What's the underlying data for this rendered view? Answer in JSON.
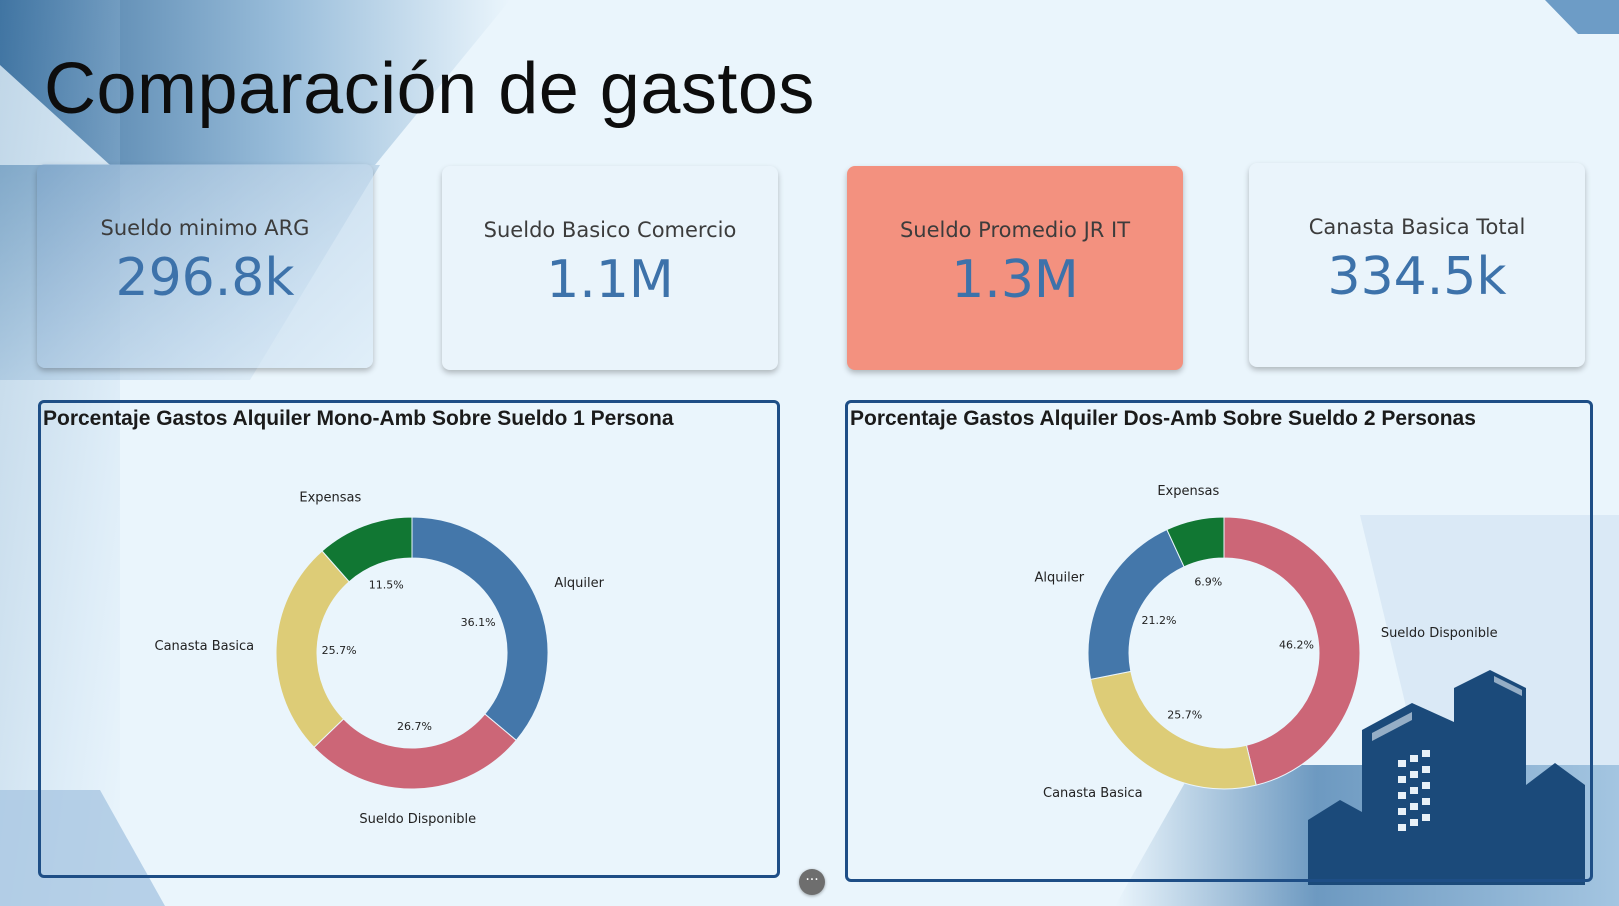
{
  "title": "Comparación de gastos",
  "kpis": [
    {
      "label": "Sueldo minimo ARG",
      "value": "296.8k"
    },
    {
      "label": "Sueldo Basico Comercio",
      "value": "1.1M"
    },
    {
      "label": "Sueldo Promedio JR IT",
      "value": "1.3M"
    },
    {
      "label": "Canasta Basica Total",
      "value": "334.5k"
    }
  ],
  "more_button": "···",
  "colors": {
    "accent_kpi": "#f3917f",
    "kpi_value": "#3d72aa",
    "panel_border": "#1e4e86",
    "building": "#1b4a7a"
  },
  "icons": [
    "more-options-icon",
    "city-buildings-icon"
  ],
  "chart_data": [
    {
      "type": "pie",
      "title": "Porcentaje Gastos Alquiler Mono-Amb Sobre Sueldo 1 Persona",
      "donut": true,
      "start": "top, clockwise",
      "labels": [
        "Alquiler",
        "Sueldo Disponible",
        "Canasta Basica",
        "Expensas"
      ],
      "values": [
        36.1,
        26.7,
        25.7,
        11.5
      ],
      "value_labels": [
        "36.1%",
        "26.7%",
        "25.7%",
        "11.5%"
      ],
      "colors": [
        "#4477aa",
        "#cc6677",
        "#ddcc77",
        "#117733"
      ]
    },
    {
      "type": "pie",
      "title": "Porcentaje Gastos Alquiler Dos-Amb Sobre Sueldo 2 Personas",
      "donut": true,
      "start": "top, clockwise",
      "labels": [
        "Sueldo Disponible",
        "Canasta Basica",
        "Alquiler",
        "Expensas"
      ],
      "values": [
        46.2,
        25.7,
        21.2,
        6.9
      ],
      "value_labels": [
        "46.2%",
        "25.7%",
        "21.2%",
        "6.9%"
      ],
      "colors": [
        "#cc6677",
        "#ddcc77",
        "#4477aa",
        "#117733"
      ]
    }
  ]
}
